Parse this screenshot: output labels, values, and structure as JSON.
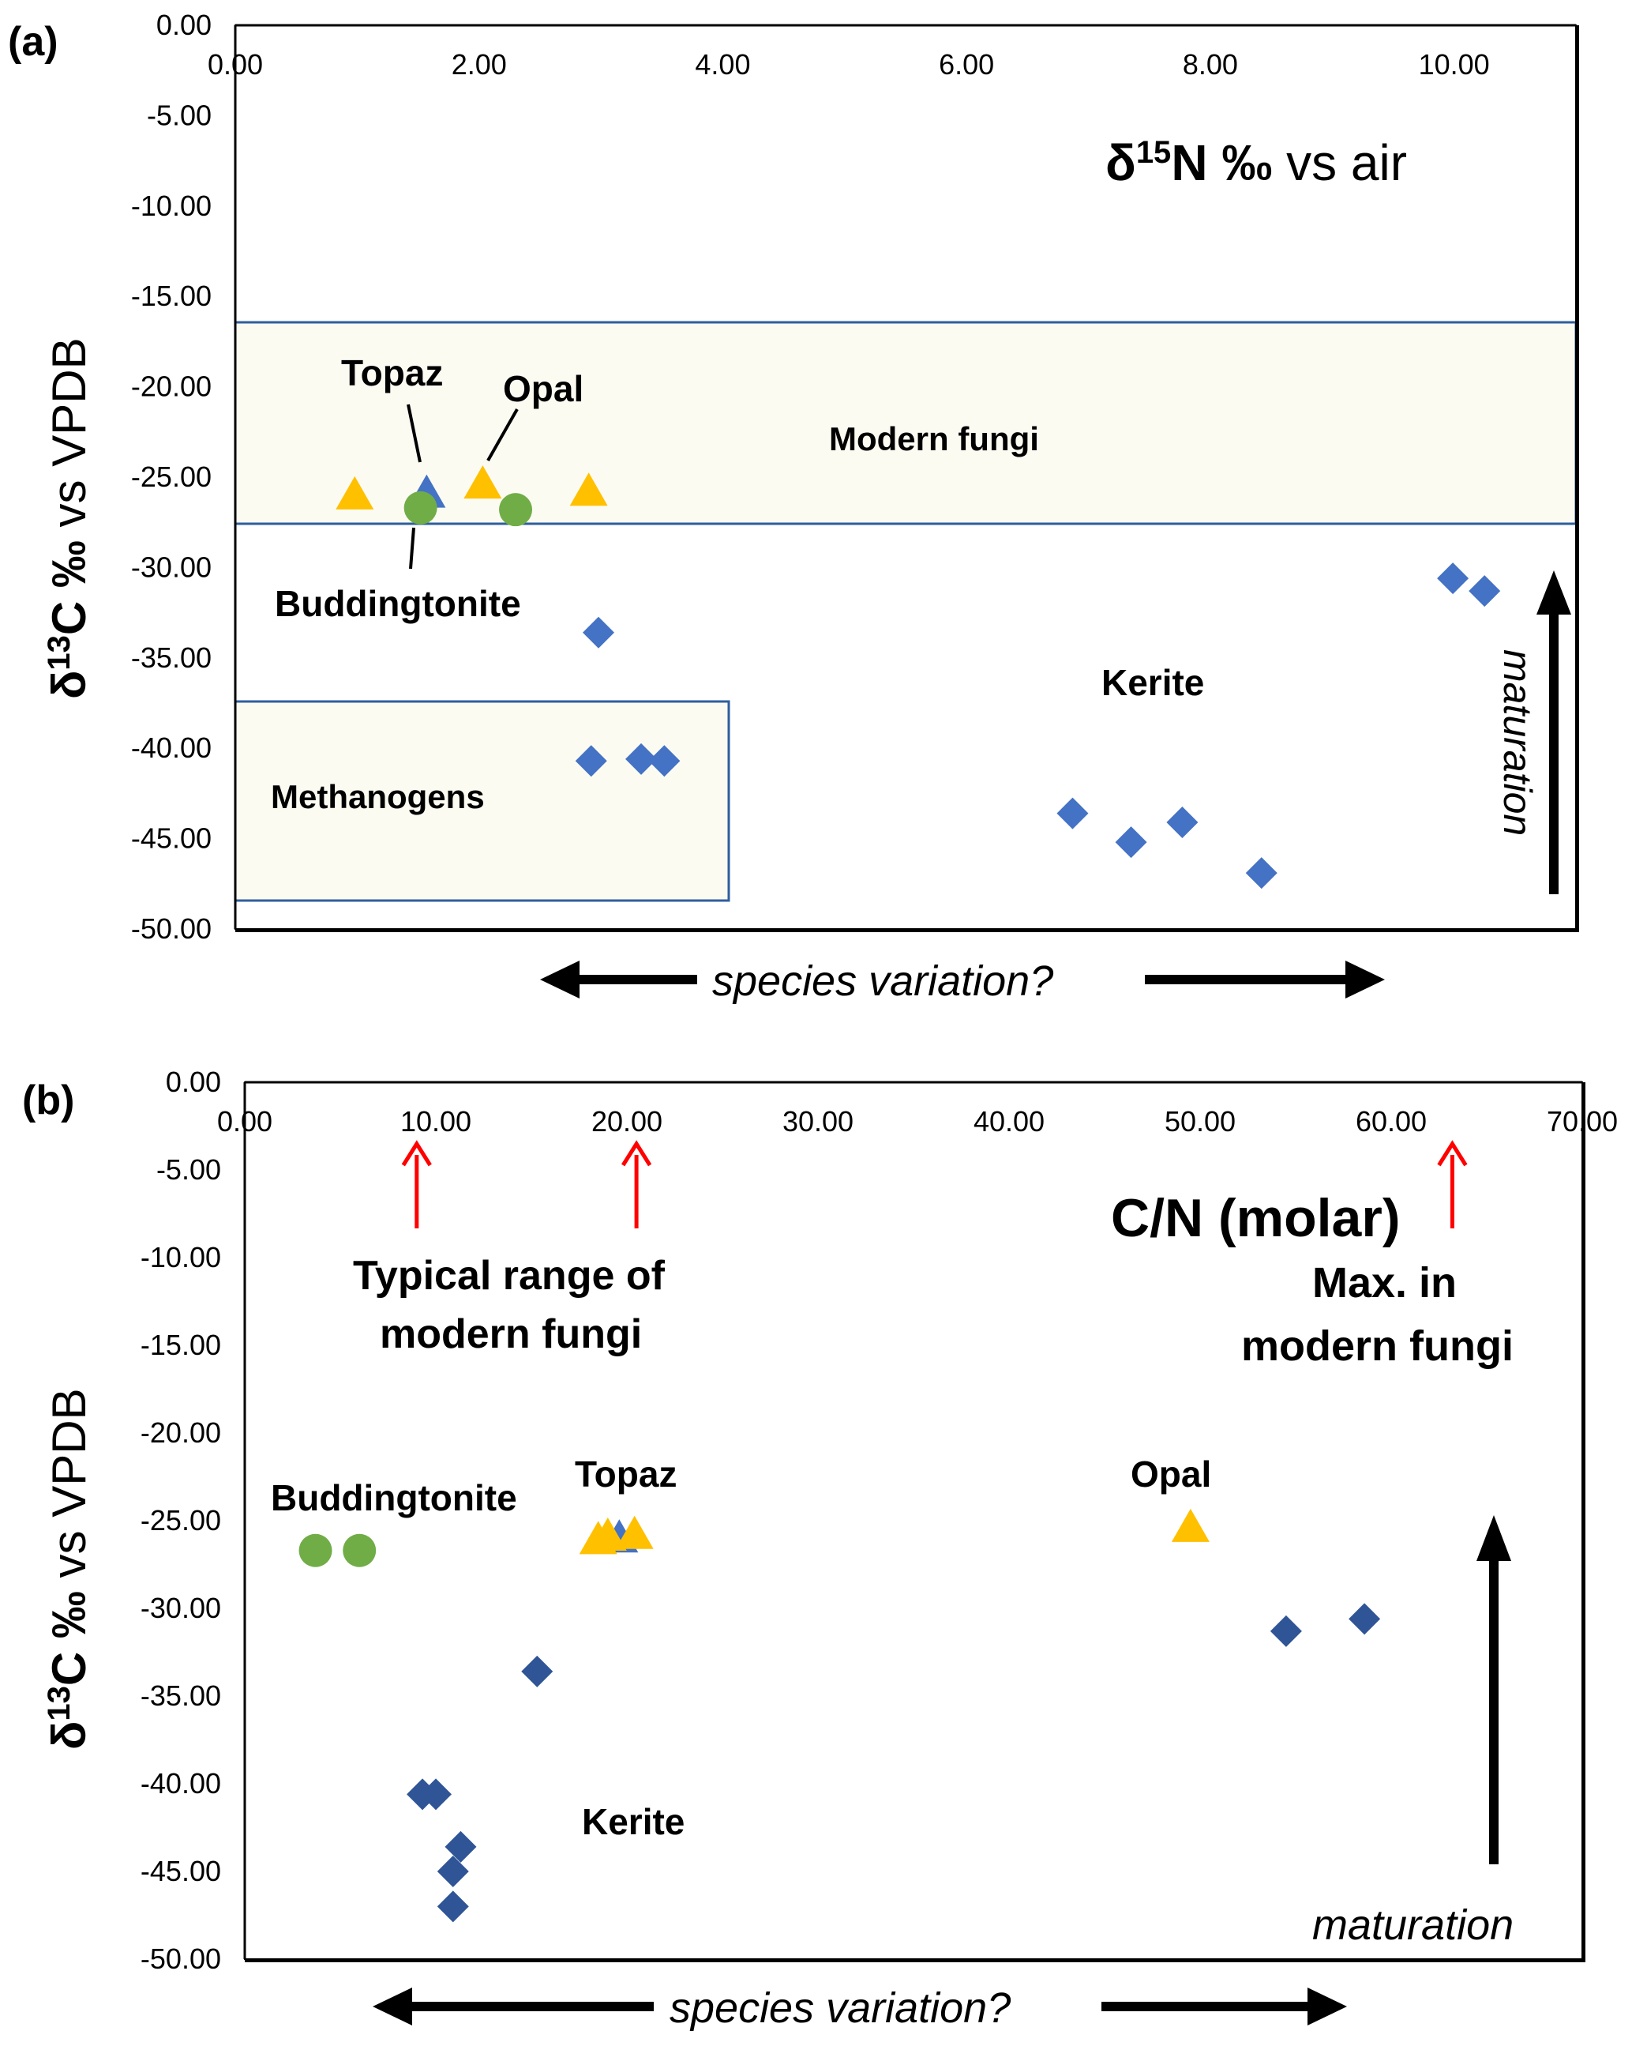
{
  "colors": {
    "kerite": "#4472C4",
    "kerite_dark": "#2F5597",
    "topaz_tri": "#4472C4",
    "opal_tri": "#FFC000",
    "buddingtonite": "#70AD47",
    "box_fill": "#FCFBF2",
    "box_stroke": "#2E5E9E",
    "red_arrow": "#FF0000"
  },
  "chart_data": [
    {
      "type": "scatter",
      "panel_label": "(a)",
      "title": "",
      "xlabel": "δ ¹⁵N ‰ vs air",
      "xlabel_parts": {
        "delta": "δ",
        "sup": "15",
        "main": "N ‰",
        "rest": " vs air"
      },
      "ylabel": "δ ¹³C ‰ vs VPDB",
      "ylabel_parts": {
        "delta": "δ",
        "sup": "13",
        "main": "C ‰",
        "rest": "  vs VPDB"
      },
      "xlim": [
        0,
        11
      ],
      "ylim": [
        -50,
        0
      ],
      "x_ticks": [
        0,
        2,
        4,
        6,
        8,
        10
      ],
      "x_tick_labels": [
        "0.00",
        "2.00",
        "4.00",
        "6.00",
        "8.00",
        "10.00"
      ],
      "y_ticks": [
        0,
        -5,
        -10,
        -15,
        -20,
        -25,
        -30,
        -35,
        -40,
        -45,
        -50
      ],
      "y_tick_labels": [
        "0.00",
        "-5.00",
        "-10.00",
        "-15.00",
        "-20.00",
        "-25.00",
        "-30.00",
        "-35.00",
        "-40.00",
        "-45.00",
        "-50.00"
      ],
      "regions": [
        {
          "label": "Modern fungi",
          "x": [
            0,
            11
          ],
          "y": [
            -27.5,
            -16.3
          ]
        },
        {
          "label": "Methanogens",
          "x": [
            0,
            4.05
          ],
          "y": [
            -48.3,
            -37.2
          ]
        }
      ],
      "series": [
        {
          "name": "Kerite",
          "marker": "diamond",
          "x": [
            2.98,
            2.92,
            3.33,
            3.52,
            6.87,
            7.35,
            7.77,
            8.42,
            9.99,
            10.25
          ],
          "y": [
            -33.6,
            -40.7,
            -40.6,
            -40.7,
            -43.6,
            -45.2,
            -44.1,
            -46.9,
            -30.6,
            -31.3
          ]
        },
        {
          "name": "Topaz",
          "marker": "triangle",
          "x": [
            1.57
          ],
          "y": [
            -25.9
          ]
        },
        {
          "name": "Opal",
          "marker": "triangle",
          "x": [
            0.98,
            2.03,
            2.9
          ],
          "y": [
            -26.0,
            -25.4,
            -25.8
          ]
        },
        {
          "name": "Buddingtonite",
          "marker": "circle",
          "x": [
            1.52,
            2.3
          ],
          "y": [
            -26.7,
            -26.8
          ]
        }
      ],
      "annotations": {
        "topaz": "Topaz",
        "opal": "Opal",
        "buddingtonite": "Buddingtonite",
        "kerite": "Kerite",
        "maturation": "maturation",
        "species_variation": "species variation?"
      }
    },
    {
      "type": "scatter",
      "panel_label": "(b)",
      "title": "",
      "xlabel": "C/N (molar)",
      "ylabel": "δ ¹³C ‰ vs VPDB",
      "ylabel_parts": {
        "delta": "δ",
        "sup": "13",
        "main": "C ‰",
        "rest": "  vs VPDB"
      },
      "xlim": [
        0,
        70
      ],
      "ylim": [
        -50,
        0
      ],
      "x_ticks": [
        0,
        10,
        20,
        30,
        40,
        50,
        60,
        70
      ],
      "x_tick_labels": [
        "0.00",
        "10.00",
        "20.00",
        "30.00",
        "40.00",
        "50.00",
        "60.00",
        "70.00"
      ],
      "y_ticks": [
        0,
        -5,
        -10,
        -15,
        -20,
        -25,
        -30,
        -35,
        -40,
        -45,
        -50
      ],
      "y_tick_labels": [
        "0.00",
        "-5.00",
        "-10.00",
        "-15.00",
        "-20.00",
        "-25.00",
        "-30.00",
        "-35.00",
        "-40.00",
        "-45.00",
        "-50.00"
      ],
      "markers_x": [
        9.0,
        20.5,
        63.2
      ],
      "series": [
        {
          "name": "Kerite",
          "marker": "diamond",
          "x": [
            15.3,
            9.3,
            10.0,
            11.3,
            10.9,
            10.9,
            54.5,
            58.6
          ],
          "y": [
            -33.6,
            -40.6,
            -40.6,
            -43.6,
            -45.0,
            -47.0,
            -31.3,
            -30.6
          ]
        },
        {
          "name": "Topaz",
          "marker": "triangle",
          "x": [
            19.6
          ],
          "y": [
            -26.0
          ]
        },
        {
          "name": "Opal",
          "marker": "triangle",
          "x": [
            18.5,
            19.0,
            20.4,
            49.5
          ],
          "y": [
            -26.1,
            -25.9,
            -25.8,
            -25.4
          ]
        },
        {
          "name": "Buddingtonite",
          "marker": "circle",
          "x": [
            3.7,
            6.0
          ],
          "y": [
            -26.7,
            -26.7
          ]
        }
      ],
      "annotations": {
        "typical_range": "Typical range of",
        "typical_range_2": "modern fungi",
        "max_1": "Max. in",
        "max_2": "modern fungi",
        "buddingtonite": "Buddingtonite",
        "topaz": "Topaz",
        "opal": "Opal",
        "kerite": "Kerite",
        "maturation": "maturation",
        "species_variation": "species variation?"
      }
    }
  ]
}
